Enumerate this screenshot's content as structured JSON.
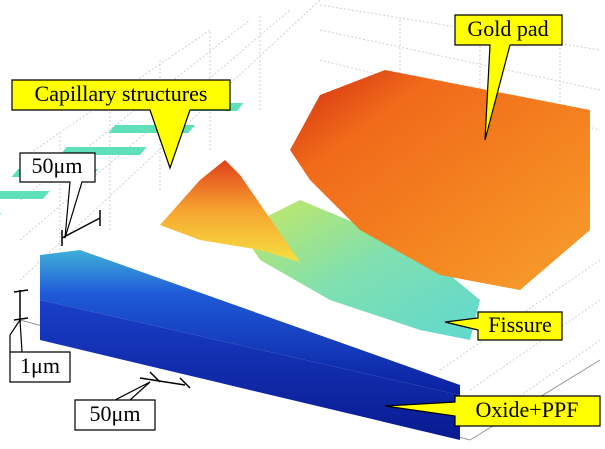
{
  "annotations": {
    "capillary": "Capillary structures",
    "gold_pad": "Gold pad",
    "scale_top": "50μm",
    "scale_height": "1μm",
    "scale_bottom": "50μm",
    "fissure": "Fissure",
    "oxide": "Oxide+PPF"
  }
}
